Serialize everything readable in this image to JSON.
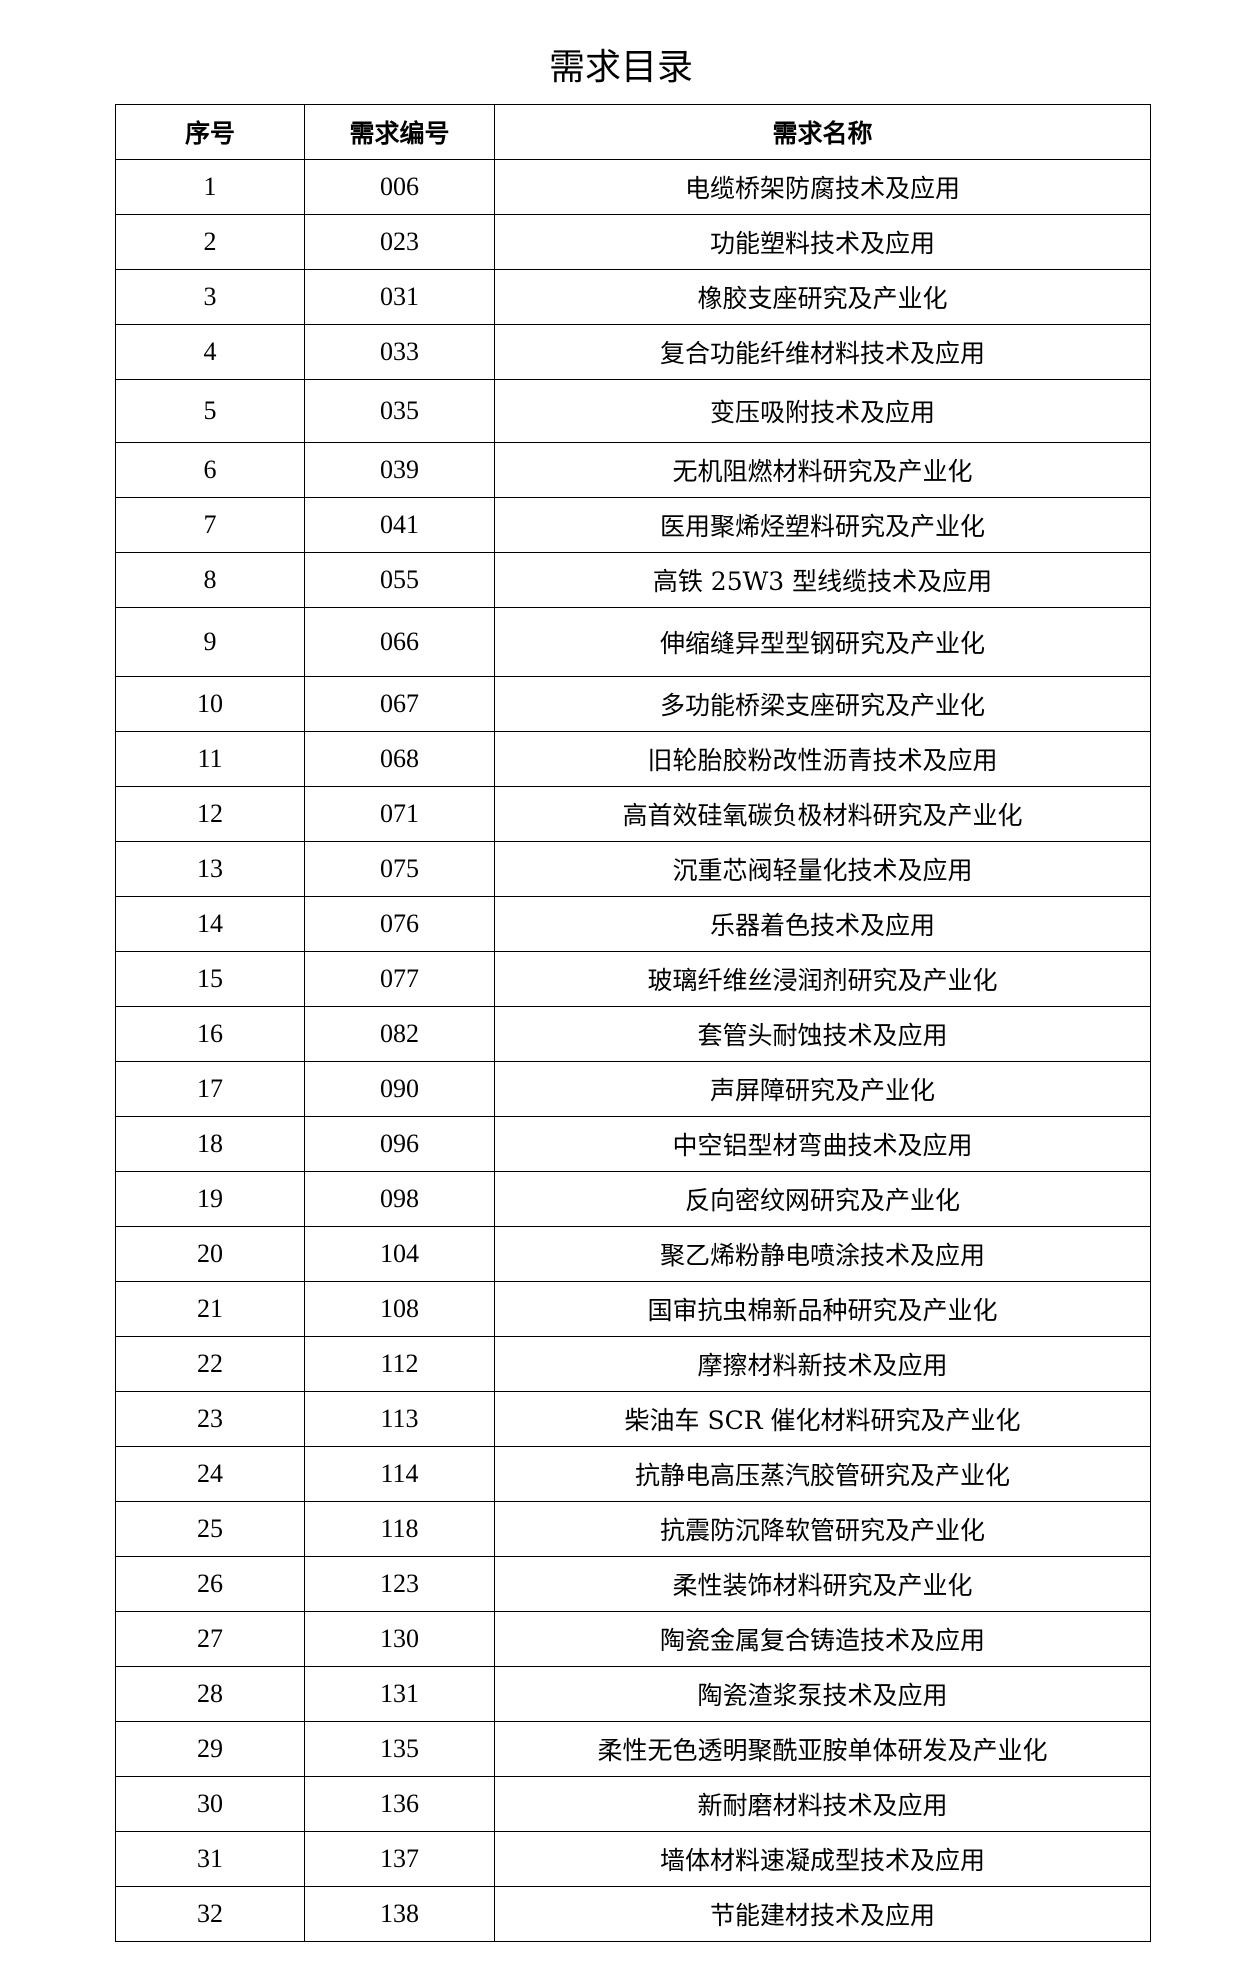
{
  "title": "需求目录",
  "columns": [
    "序号",
    "需求编号",
    "需求名称"
  ],
  "rows": [
    [
      "1",
      "006",
      "电缆桥架防腐技术及应用"
    ],
    [
      "2",
      "023",
      "功能塑料技术及应用"
    ],
    [
      "3",
      "031",
      "橡胶支座研究及产业化"
    ],
    [
      "4",
      "033",
      "复合功能纤维材料技术及应用"
    ],
    [
      "5",
      "035",
      "变压吸附技术及应用"
    ],
    [
      "6",
      "039",
      "无机阻燃材料研究及产业化"
    ],
    [
      "7",
      "041",
      "医用聚烯烃塑料研究及产业化"
    ],
    [
      "8",
      "055",
      "高铁 25W3 型线缆技术及应用"
    ],
    [
      "9",
      "066",
      "伸缩缝异型型钢研究及产业化"
    ],
    [
      "10",
      "067",
      "多功能桥梁支座研究及产业化"
    ],
    [
      "11",
      "068",
      "旧轮胎胶粉改性沥青技术及应用"
    ],
    [
      "12",
      "071",
      "高首效硅氧碳负极材料研究及产业化"
    ],
    [
      "13",
      "075",
      "沉重芯阀轻量化技术及应用"
    ],
    [
      "14",
      "076",
      "乐器着色技术及应用"
    ],
    [
      "15",
      "077",
      "玻璃纤维丝浸润剂研究及产业化"
    ],
    [
      "16",
      "082",
      "套管头耐蚀技术及应用"
    ],
    [
      "17",
      "090",
      "声屏障研究及产业化"
    ],
    [
      "18",
      "096",
      "中空铝型材弯曲技术及应用"
    ],
    [
      "19",
      "098",
      "反向密纹网研究及产业化"
    ],
    [
      "20",
      "104",
      "聚乙烯粉静电喷涂技术及应用"
    ],
    [
      "21",
      "108",
      "国审抗虫棉新品种研究及产业化"
    ],
    [
      "22",
      "112",
      "摩擦材料新技术及应用"
    ],
    [
      "23",
      "113",
      "柴油车 SCR 催化材料研究及产业化"
    ],
    [
      "24",
      "114",
      "抗静电高压蒸汽胶管研究及产业化"
    ],
    [
      "25",
      "118",
      "抗震防沉降软管研究及产业化"
    ],
    [
      "26",
      "123",
      "柔性装饰材料研究及产业化"
    ],
    [
      "27",
      "130",
      "陶瓷金属复合铸造技术及应用"
    ],
    [
      "28",
      "131",
      "陶瓷渣浆泵技术及应用"
    ],
    [
      "29",
      "135",
      "柔性无色透明聚酰亚胺单体研发及产业化"
    ],
    [
      "30",
      "136",
      "新耐磨材料技术及应用"
    ],
    [
      "31",
      "137",
      "墙体材料速凝成型技术及应用"
    ],
    [
      "32",
      "138",
      "节能建材技术及应用"
    ]
  ]
}
